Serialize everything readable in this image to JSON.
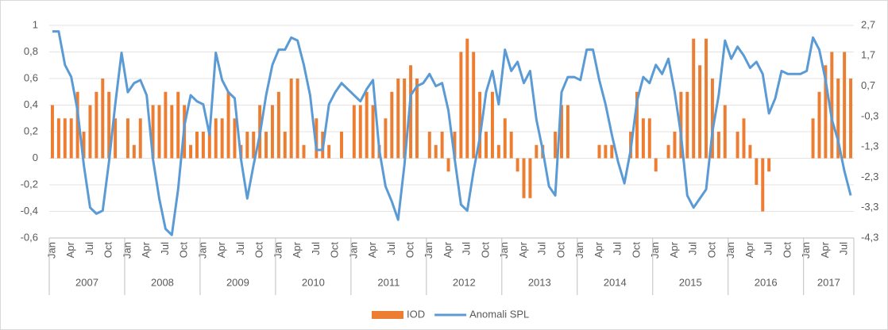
{
  "chart_data": {
    "type": "bar-line",
    "categories": [
      "Jan",
      null,
      null,
      "Apr",
      null,
      null,
      "Jul",
      null,
      null,
      "Oct",
      null,
      null,
      "Jan",
      null,
      null,
      "Apr",
      null,
      null,
      "Jul",
      null,
      null,
      "Oct",
      null,
      null,
      "Jan",
      null,
      null,
      "Apr",
      null,
      null,
      "Jul",
      null,
      null,
      "Oct",
      null,
      null,
      "Jan",
      null,
      null,
      "Apr",
      null,
      null,
      "Jul",
      null,
      null,
      "Oct",
      null,
      null,
      "Jan",
      null,
      null,
      "Apr",
      null,
      null,
      "Jul",
      null,
      null,
      "Oct",
      null,
      null,
      "Jan",
      null,
      null,
      "Apr",
      null,
      null,
      "Jul",
      null,
      null,
      "Oct",
      null,
      null,
      "Jan",
      null,
      null,
      "Apr",
      null,
      null,
      "Jul",
      null,
      null,
      "Oct",
      null,
      null,
      "Jan",
      null,
      null,
      "Apr",
      null,
      null,
      "Jul",
      null,
      null,
      "Oct",
      null,
      null,
      "Jan",
      null,
      null,
      "Apr",
      null,
      null,
      "Jul",
      null,
      null,
      "Oct",
      null,
      null,
      "Jan",
      null,
      null,
      "Apr",
      null,
      null,
      "Jul",
      null,
      null,
      "Oct",
      null,
      null,
      "Jan",
      null,
      null,
      "Apr",
      null,
      null,
      "Jul",
      null
    ],
    "years": [
      "2007",
      "2008",
      "2009",
      "2010",
      "2011",
      "2012",
      "2013",
      "2014",
      "2015",
      "2016",
      "2017"
    ],
    "series": [
      {
        "name": "IOD",
        "kind": "bar",
        "color": "#ed7d31",
        "values": [
          0.4,
          0.3,
          0.3,
          0.3,
          0.5,
          0.2,
          0.4,
          0.5,
          0.6,
          0.5,
          0.3,
          0,
          0.3,
          0.1,
          0.3,
          0,
          0.4,
          0.4,
          0.5,
          0.4,
          0.5,
          0.4,
          0.1,
          0.2,
          0.2,
          0.2,
          0.3,
          0.3,
          0.5,
          0.3,
          0.1,
          0.2,
          0.2,
          0.4,
          0.2,
          0.4,
          0.5,
          0.2,
          0.6,
          0.6,
          0.1,
          0,
          0.3,
          0.2,
          0.1,
          0,
          0.2,
          0,
          0.4,
          0.4,
          0.5,
          0.4,
          0.1,
          0.3,
          0.5,
          0.6,
          0.6,
          0.7,
          0.6,
          0,
          0.2,
          0.1,
          0.2,
          -0.1,
          0.2,
          0.8,
          0.9,
          0.8,
          0.5,
          0.2,
          0.5,
          0.1,
          0.3,
          0.2,
          -0.1,
          -0.3,
          -0.3,
          0.1,
          0.1,
          0,
          0.2,
          0.4,
          0.4,
          0,
          0,
          0,
          0,
          0.1,
          0.1,
          0.1,
          0,
          0,
          0.2,
          0.5,
          0.3,
          0.3,
          -0.1,
          0,
          0.1,
          0.2,
          0.5,
          0.5,
          0.9,
          0.7,
          0.9,
          0.6,
          0.2,
          0.4,
          0,
          0.2,
          0.3,
          0.1,
          -0.2,
          -0.4,
          -0.1,
          0,
          0,
          0,
          0,
          0,
          0,
          0.3,
          0.5,
          0.7,
          0.8,
          0.6,
          0.8,
          0.6
        ]
      },
      {
        "name": "Anomali SPL",
        "kind": "line",
        "axis": "y2",
        "color": "#5b9bd5",
        "values": [
          2.5,
          2.5,
          1.4,
          1.0,
          -0.1,
          -1.9,
          -3.3,
          -3.5,
          -3.4,
          -1.8,
          0.1,
          1.8,
          0.5,
          0.8,
          0.9,
          0.4,
          -1.7,
          -3.0,
          -4.0,
          -4.2,
          -2.7,
          -0.6,
          0.4,
          0.2,
          0.1,
          -0.9,
          1.8,
          0.9,
          0.5,
          0.3,
          -1.7,
          -3.0,
          -1.9,
          -0.9,
          0.4,
          1.4,
          1.9,
          1.9,
          2.3,
          2.2,
          1.4,
          0.4,
          -1.4,
          -1.4,
          0.1,
          0.5,
          0.8,
          0.6,
          0.4,
          0.2,
          0.6,
          0.9,
          -1.4,
          -2.6,
          -3.1,
          -3.7,
          -1.9,
          0.4,
          0.7,
          0.8,
          1.1,
          0.7,
          0.8,
          -0.1,
          -1.7,
          -3.2,
          -3.4,
          -2.1,
          -1.0,
          0.5,
          1.2,
          0.1,
          1.9,
          1.2,
          1.5,
          0.8,
          1.2,
          -0.4,
          -1.4,
          -2.6,
          -2.9,
          0.5,
          1.0,
          1.0,
          0.9,
          1.9,
          1.9,
          0.9,
          0.1,
          -0.9,
          -1.8,
          -2.5,
          -1.4,
          0.2,
          1.0,
          0.8,
          1.4,
          1.1,
          1.6,
          0.5,
          -0.9,
          -2.9,
          -3.3,
          -3.0,
          -2.7,
          -0.8,
          0.4,
          2.2,
          1.6,
          2.0,
          1.7,
          1.3,
          1.5,
          1.1,
          -0.2,
          0.3,
          1.2,
          1.1,
          1.1,
          1.1,
          1.2,
          2.3,
          1.9,
          0.9,
          -0.4,
          -1.1,
          -2.1,
          -2.9
        ]
      }
    ],
    "ylim": [
      -0.6,
      1
    ],
    "yticks": [
      1,
      {
        "value": 0.8,
        "label": "0,8"
      },
      {
        "value": 0.6,
        "label": "0,6"
      },
      {
        "value": 0.4,
        "label": "0,4"
      },
      {
        "value": 0.2,
        "label": "0,2"
      },
      0,
      {
        "value": -0.2,
        "label": "-0,2"
      },
      {
        "value": -0.4,
        "label": "-0,4"
      },
      {
        "value": -0.6,
        "label": "-0,6"
      }
    ],
    "y2lim": [
      -4.3,
      2.7
    ],
    "y2ticks": [
      {
        "value": 2.7,
        "label": "2,7"
      },
      {
        "value": 1.7,
        "label": "1,7"
      },
      {
        "value": 0.7,
        "label": "0,7"
      },
      {
        "value": -0.3,
        "label": "-0,3"
      },
      {
        "value": -1.3,
        "label": "-1,3"
      },
      {
        "value": -2.3,
        "label": "-2,3"
      },
      {
        "value": -3.3,
        "label": "-3,3"
      },
      {
        "value": -4.3,
        "label": "-4,3"
      }
    ],
    "grid": true
  }
}
